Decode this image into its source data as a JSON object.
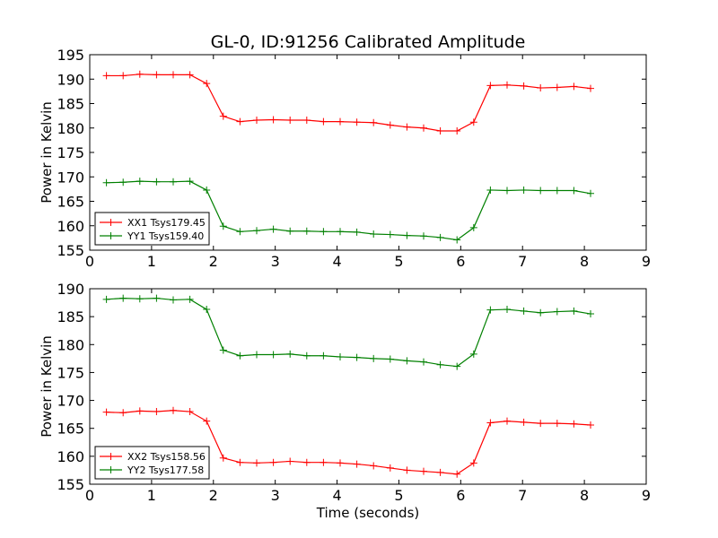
{
  "chart_data": [
    {
      "type": "line",
      "title": "GL-0, ID:91256 Calibrated Amplitude",
      "xlabel": "",
      "ylabel": "Power in Kelvin",
      "xlim": [
        0,
        9
      ],
      "ylim": [
        155,
        195
      ],
      "xticks": [
        0,
        1,
        2,
        3,
        4,
        5,
        6,
        7,
        8,
        9
      ],
      "yticks": [
        155,
        160,
        165,
        170,
        175,
        180,
        185,
        190,
        195
      ],
      "legend_position": "lower-left",
      "x": [
        0.27,
        0.54,
        0.81,
        1.08,
        1.35,
        1.62,
        1.89,
        2.16,
        2.43,
        2.7,
        2.97,
        3.24,
        3.51,
        3.78,
        4.05,
        4.32,
        4.59,
        4.86,
        5.13,
        5.4,
        5.67,
        5.94,
        6.21,
        6.48,
        6.75,
        7.02,
        7.29,
        7.56,
        7.83,
        8.1
      ],
      "series": [
        {
          "name": "XX1 Tsys179.45",
          "color": "#ff0000",
          "values": [
            190.7,
            190.7,
            191.0,
            190.9,
            190.9,
            190.9,
            189.1,
            182.4,
            181.3,
            181.6,
            181.7,
            181.6,
            181.6,
            181.3,
            181.3,
            181.2,
            181.1,
            180.6,
            180.2,
            180.0,
            179.4,
            179.4,
            181.2,
            188.7,
            188.8,
            188.6,
            188.2,
            188.3,
            188.5,
            188.1
          ]
        },
        {
          "name": "YY1 Tsys159.40",
          "color": "#008000",
          "values": [
            168.8,
            168.9,
            169.1,
            169.0,
            169.0,
            169.1,
            167.3,
            159.9,
            158.8,
            159.0,
            159.3,
            158.9,
            158.9,
            158.8,
            158.8,
            158.7,
            158.3,
            158.2,
            158.0,
            157.9,
            157.6,
            157.1,
            159.6,
            167.3,
            167.2,
            167.3,
            167.2,
            167.2,
            167.2,
            166.6
          ]
        }
      ]
    },
    {
      "type": "line",
      "title": "",
      "xlabel": "Time (seconds)",
      "ylabel": "Power in Kelvin",
      "xlim": [
        0,
        9
      ],
      "ylim": [
        155,
        190
      ],
      "xticks": [
        0,
        1,
        2,
        3,
        4,
        5,
        6,
        7,
        8,
        9
      ],
      "yticks": [
        155,
        160,
        165,
        170,
        175,
        180,
        185,
        190
      ],
      "legend_position": "lower-left",
      "x": [
        0.27,
        0.54,
        0.81,
        1.08,
        1.35,
        1.62,
        1.89,
        2.16,
        2.43,
        2.7,
        2.97,
        3.24,
        3.51,
        3.78,
        4.05,
        4.32,
        4.59,
        4.86,
        5.13,
        5.4,
        5.67,
        5.94,
        6.21,
        6.48,
        6.75,
        7.02,
        7.29,
        7.56,
        7.83,
        8.1
      ],
      "series": [
        {
          "name": "XX2 Tsys158.56",
          "color": "#ff0000",
          "values": [
            167.9,
            167.8,
            168.1,
            168.0,
            168.2,
            168.0,
            166.3,
            159.7,
            158.9,
            158.8,
            158.9,
            159.1,
            158.9,
            158.9,
            158.8,
            158.6,
            158.3,
            157.9,
            157.5,
            157.3,
            157.1,
            156.8,
            158.8,
            166.0,
            166.3,
            166.1,
            165.9,
            165.9,
            165.8,
            165.6
          ]
        },
        {
          "name": "YY2 Tsys177.58",
          "color": "#008000",
          "values": [
            188.1,
            188.3,
            188.2,
            188.3,
            188.0,
            188.1,
            186.3,
            179.0,
            178.0,
            178.2,
            178.2,
            178.3,
            178.0,
            178.0,
            177.8,
            177.7,
            177.5,
            177.4,
            177.1,
            176.9,
            176.4,
            176.1,
            178.3,
            186.2,
            186.3,
            186.0,
            185.7,
            185.9,
            186.0,
            185.5
          ]
        }
      ]
    }
  ]
}
